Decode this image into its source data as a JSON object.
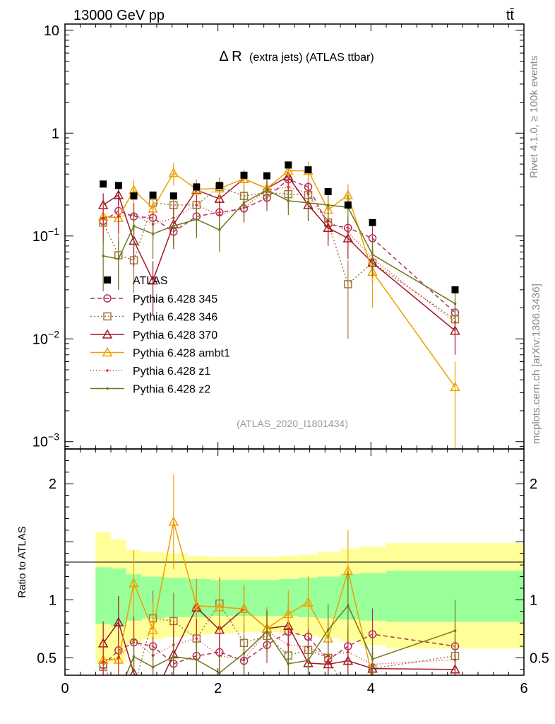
{
  "header": {
    "energy_label": "13000 GeV pp",
    "process_label": "tt̄",
    "side_label_top": "Rivet 4.1.0, ≥ 100k events",
    "side_label_bottom": "mcplots.cern.ch [arXiv:1306.3436]"
  },
  "chart_data": {
    "type": "line",
    "title": "Δ R",
    "subtitle": "(extra jets) (ATLAS ttbar)",
    "analysis_tag": "(ATLAS_2020_I1801434)",
    "xlabel": "",
    "ylabel_ratio": "Ratio to ATLAS",
    "xlim": [
      0,
      6
    ],
    "ylim_main": [
      0.00085,
      11.5
    ],
    "yscale_main": "log",
    "ylim_ratio": [
      0.35,
      2.3
    ],
    "x_ticks": [
      0,
      2,
      4,
      6
    ],
    "main_y_ticks": [
      {
        "v": 10,
        "t": "10"
      },
      {
        "v": 1,
        "t": "1"
      },
      {
        "v": 0.1,
        "t": "10",
        "e": "−1"
      },
      {
        "v": 0.01,
        "t": "10",
        "e": "−2"
      },
      {
        "v": 0.001,
        "t": "10",
        "e": "−3"
      }
    ],
    "ratio_y_ticks": [
      {
        "v": 0.5,
        "t": "0.5"
      },
      {
        "v": 1,
        "t": "1"
      },
      {
        "v": 2,
        "t": "2"
      }
    ],
    "x": [
      0.5,
      0.7,
      0.9,
      1.15,
      1.42,
      1.72,
      2.02,
      2.34,
      2.64,
      2.92,
      3.18,
      3.44,
      3.7,
      4.02,
      5.1
    ],
    "data": {
      "name": "ATLAS",
      "color": "#000000",
      "values": [
        0.32,
        0.31,
        0.245,
        0.25,
        0.245,
        0.3,
        0.31,
        0.39,
        0.385,
        0.49,
        0.44,
        0.27,
        0.2,
        0.135,
        0.03
      ],
      "bands": [
        {
          "x0": 0.4,
          "x1": 0.6,
          "g": [
            0.79,
            1.28
          ],
          "y": [
            0.45,
            1.58
          ]
        },
        {
          "x0": 0.6,
          "x1": 0.8,
          "g": [
            0.77,
            1.27
          ],
          "y": [
            0.46,
            1.52
          ]
        },
        {
          "x0": 0.8,
          "x1": 1.0,
          "g": [
            0.82,
            1.22
          ],
          "y": [
            0.62,
            1.43
          ]
        },
        {
          "x0": 1.0,
          "x1": 1.3,
          "g": [
            0.84,
            1.2
          ],
          "y": [
            0.66,
            1.41
          ]
        },
        {
          "x0": 1.3,
          "x1": 1.6,
          "g": [
            0.85,
            1.19
          ],
          "y": [
            0.68,
            1.4
          ]
        },
        {
          "x0": 1.6,
          "x1": 1.9,
          "g": [
            0.85,
            1.18
          ],
          "y": [
            0.7,
            1.38
          ]
        },
        {
          "x0": 1.9,
          "x1": 2.2,
          "g": [
            0.86,
            1.17
          ],
          "y": [
            0.71,
            1.37
          ]
        },
        {
          "x0": 2.2,
          "x1": 2.5,
          "g": [
            0.86,
            1.17
          ],
          "y": [
            0.72,
            1.37
          ]
        },
        {
          "x0": 2.5,
          "x1": 2.8,
          "g": [
            0.86,
            1.17
          ],
          "y": [
            0.72,
            1.37
          ]
        },
        {
          "x0": 2.8,
          "x1": 3.05,
          "g": [
            0.86,
            1.18
          ],
          "y": [
            0.71,
            1.38
          ]
        },
        {
          "x0": 3.05,
          "x1": 3.3,
          "g": [
            0.85,
            1.19
          ],
          "y": [
            0.69,
            1.39
          ]
        },
        {
          "x0": 3.3,
          "x1": 3.6,
          "g": [
            0.84,
            1.2
          ],
          "y": [
            0.67,
            1.41
          ]
        },
        {
          "x0": 3.6,
          "x1": 3.85,
          "g": [
            0.83,
            1.22
          ],
          "y": [
            0.64,
            1.44
          ]
        },
        {
          "x0": 3.85,
          "x1": 4.2,
          "g": [
            0.82,
            1.23
          ],
          "y": [
            0.61,
            1.46
          ]
        },
        {
          "x0": 4.2,
          "x1": 6.0,
          "g": [
            0.81,
            1.25
          ],
          "y": [
            0.58,
            1.49
          ]
        }
      ]
    },
    "series": [
      {
        "name": "Pythia 6.428 345",
        "color": "#b03060",
        "dash": "6,4",
        "marker": "circle",
        "values": [
          0.14,
          0.175,
          0.155,
          0.15,
          0.11,
          0.155,
          0.17,
          0.185,
          0.235,
          0.355,
          0.3,
          0.13,
          0.12,
          0.095,
          0.018
        ],
        "err": [
          0.05,
          0.05,
          0.05,
          0.05,
          0.035,
          0.05,
          0.05,
          0.05,
          0.06,
          0.08,
          0.07,
          0.04,
          0.035,
          0.03,
          0.006
        ]
      },
      {
        "name": "Pythia 6.428 346",
        "color": "#a07838",
        "dash": "2,3",
        "marker": "square",
        "values": [
          0.135,
          0.065,
          0.058,
          0.21,
          0.2,
          0.2,
          0.3,
          0.245,
          0.265,
          0.255,
          0.25,
          0.135,
          0.034,
          0.055,
          0.0155
        ],
        "err": [
          0.05,
          0.035,
          0.03,
          0.06,
          0.06,
          0.05,
          0.07,
          0.06,
          0.06,
          0.07,
          0.06,
          0.04,
          0.024,
          0.02,
          0.005
        ]
      },
      {
        "name": "Pythia 6.428 370",
        "color": "#a01828",
        "dash": "",
        "marker": "triangle",
        "values": [
          0.2,
          0.25,
          0.09,
          0.037,
          0.13,
          0.28,
          0.23,
          0.36,
          0.29,
          0.38,
          0.2,
          0.12,
          0.095,
          0.055,
          0.012
        ],
        "err": [
          0.06,
          0.07,
          0.04,
          0.02,
          0.05,
          0.07,
          0.06,
          0.08,
          0.07,
          0.09,
          0.06,
          0.04,
          0.035,
          0.02,
          0.005
        ]
      },
      {
        "name": "Pythia 6.428 ambt1",
        "color": "#f0a000",
        "dash": "",
        "marker": "triangle",
        "values": [
          0.155,
          0.15,
          0.28,
          0.185,
          0.41,
          0.285,
          0.29,
          0.36,
          0.29,
          0.43,
          0.43,
          0.18,
          0.25,
          0.045,
          0.0034
        ],
        "err": [
          0.05,
          0.05,
          0.07,
          0.06,
          0.1,
          0.07,
          0.07,
          0.08,
          0.07,
          0.1,
          0.1,
          0.05,
          0.07,
          0.025,
          0.0026
        ]
      },
      {
        "name": "Pythia 6.428 z1",
        "color": "#d82828",
        "dash": "1,3",
        "marker": "dot",
        "values": [
          0.15,
          0.155,
          0.16,
          0.13,
          0.15,
          0.2,
          0.16,
          0.19,
          0.28,
          0.3,
          0.26,
          0.14,
          0.11,
          0.06,
          0.0145
        ],
        "err": [
          0.05,
          0.05,
          0.05,
          0.04,
          0.05,
          0.05,
          0.05,
          0.05,
          0.06,
          0.07,
          0.06,
          0.04,
          0.035,
          0.02,
          0.005
        ]
      },
      {
        "name": "Pythia 6.428 z2",
        "color": "#707818",
        "dash": "",
        "marker": "dot",
        "values": [
          0.064,
          0.06,
          0.125,
          0.105,
          0.125,
          0.145,
          0.115,
          0.21,
          0.28,
          0.22,
          0.21,
          0.2,
          0.19,
          0.066,
          0.022
        ],
        "err": [
          0.035,
          0.03,
          0.05,
          0.045,
          0.05,
          0.05,
          0.045,
          0.06,
          0.07,
          0.06,
          0.06,
          0.06,
          0.06,
          0.025,
          0.008
        ]
      }
    ],
    "legend_placement": "middle-left"
  }
}
